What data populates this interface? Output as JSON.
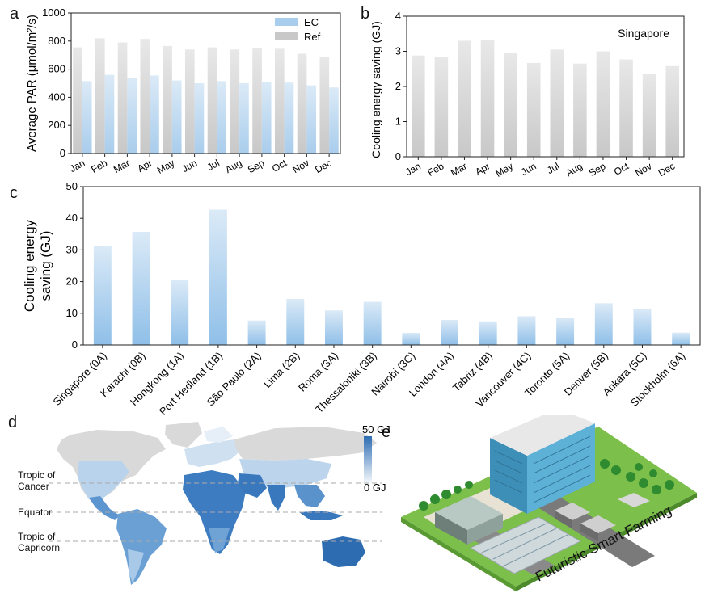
{
  "panel_labels": {
    "a": "a",
    "b": "b",
    "c": "c",
    "d": "d",
    "e": "e"
  },
  "colors": {
    "ec": "#a9cdec",
    "ec_light": "#dbeaf7",
    "ref": "#c8c8c8",
    "ref_light": "#e8e8e8",
    "map_low": "#dde9f5",
    "map_high": "#2e6cb2",
    "map_none": "#d9d9d9"
  },
  "chart_data": [
    {
      "id": "a",
      "type": "bar",
      "ylabel": "Average PAR (μmol/m²/s)",
      "ylim": [
        0,
        1000
      ],
      "yticks": [
        "0",
        "200",
        "400",
        "600",
        "800",
        "1000"
      ],
      "categories": [
        "Jan",
        "Feb",
        "Mar",
        "Apr",
        "May",
        "Jun",
        "Jul",
        "Aug",
        "Sep",
        "Oct",
        "Nov",
        "Dec"
      ],
      "series": [
        {
          "name": "Ref",
          "values": [
            755,
            820,
            790,
            815,
            765,
            740,
            755,
            740,
            750,
            745,
            710,
            690
          ]
        },
        {
          "name": "EC",
          "values": [
            515,
            560,
            535,
            555,
            520,
            500,
            515,
            500,
            510,
            505,
            485,
            470
          ]
        }
      ],
      "legend": "top-right"
    },
    {
      "id": "b",
      "type": "bar",
      "ylabel": "Cooling energy saving (GJ)",
      "annotation": "Singapore",
      "ylim": [
        0,
        4
      ],
      "yticks": [
        "0",
        "1",
        "2",
        "3",
        "4"
      ],
      "categories": [
        "Jan",
        "Feb",
        "Mar",
        "Apr",
        "May",
        "Jun",
        "Jul",
        "Aug",
        "Sep",
        "Oct",
        "Nov",
        "Dec"
      ],
      "values": [
        2.88,
        2.85,
        3.3,
        3.32,
        2.95,
        2.67,
        3.05,
        2.65,
        3.0,
        2.77,
        2.35,
        2.58
      ]
    },
    {
      "id": "c",
      "type": "bar",
      "ylabel_lines": [
        "Cooling energy",
        "saving (GJ)"
      ],
      "ylim": [
        0,
        55
      ],
      "yticks": [
        "0",
        "10",
        "20",
        "30",
        "40",
        "50"
      ],
      "categories": [
        "Singapore (0A)",
        "Karachi (0B)",
        "Hongkong (1A)",
        "Port Hedland (1B)",
        "São Paulo (2A)",
        "Lima (2B)",
        "Roma (3A)",
        "Thessaloniki (3B)",
        "Nairobi (3C)",
        "London (4A)",
        "Tabriz (4B)",
        "Vancouver (4C)",
        "Toronto (5A)",
        "Denver (5B)",
        "Ankara (5C)",
        "Stockholm (6A)"
      ],
      "values": [
        34.5,
        39.3,
        22.5,
        47.0,
        8.5,
        16.0,
        12.0,
        15.0,
        4.2,
        8.7,
        8.2,
        10.0,
        9.5,
        14.5,
        12.5,
        4.3
      ]
    },
    {
      "id": "d",
      "type": "heatmap",
      "colorbar_max": "50 GJ",
      "colorbar_min": "0 GJ",
      "lines": [
        "Tropic of Cancer",
        "Equator",
        "Tropic of Capricorn"
      ],
      "line_labels": [
        [
          "Tropic of",
          "Cancer"
        ],
        [
          "Equator"
        ],
        [
          "Tropic of",
          "Capricorn"
        ]
      ]
    }
  ],
  "illustration": {
    "caption": "Futuristic Smart Farming"
  }
}
